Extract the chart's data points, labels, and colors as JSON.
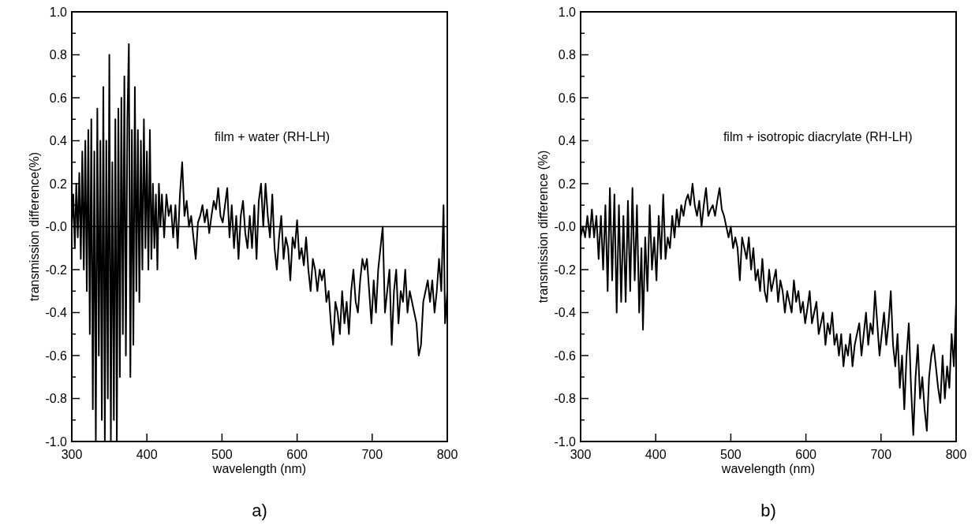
{
  "chart_data": [
    {
      "type": "line",
      "xlabel": "wavelength (nm)",
      "ylabel": "transmission difference(%)",
      "annotations": [
        "film + water (RH-LH)",
        "a)"
      ],
      "xlim": [
        300,
        800
      ],
      "xticks": [
        300,
        400,
        500,
        600,
        700,
        800
      ],
      "ylim": [
        -1,
        1
      ],
      "yticks": [
        {
          "value": -1,
          "label": "-1.0"
        },
        {
          "value": -0.9,
          "label": null
        },
        {
          "value": -0.8,
          "label": "-0.8"
        },
        {
          "value": -0.7,
          "label": null
        },
        {
          "value": -0.6,
          "label": "-0.6"
        },
        {
          "value": -0.5,
          "label": null
        },
        {
          "value": -0.4,
          "label": "-0.4"
        },
        {
          "value": -0.3,
          "label": null
        },
        {
          "value": -0.2,
          "label": "-0.2"
        },
        {
          "value": -0.1,
          "label": null
        },
        {
          "value": 0,
          "label": "-0.0"
        },
        {
          "value": 0.1,
          "label": null
        },
        {
          "value": 0.2,
          "label": "0.2"
        },
        {
          "value": 0.3,
          "label": null
        },
        {
          "value": 0.4,
          "label": "0.4"
        },
        {
          "value": 0.5,
          "label": null
        },
        {
          "value": 0.6,
          "label": "0.6"
        },
        {
          "value": 0.7,
          "label": null
        },
        {
          "value": 0.8,
          "label": "0.8"
        },
        {
          "value": 0.9,
          "label": null
        },
        {
          "value": 1.0,
          "label": "1.0"
        }
      ],
      "ref_lines": [
        {
          "axis": "y",
          "value": 0,
          "color": "#000000"
        }
      ],
      "grid": false,
      "marker": "none",
      "line_style": "solid",
      "series": [
        {
          "color": "#000000",
          "x": [
            300,
            302,
            304,
            306,
            308,
            310,
            312,
            314,
            316,
            318,
            320,
            322,
            324,
            326,
            328,
            330,
            332,
            334,
            336,
            338,
            340,
            342,
            344,
            346,
            348,
            350,
            352,
            354,
            356,
            358,
            360,
            362,
            364,
            366,
            368,
            370,
            372,
            374,
            376,
            378,
            380,
            382,
            384,
            386,
            388,
            390,
            392,
            394,
            396,
            398,
            400,
            402,
            404,
            406,
            408,
            410,
            412,
            414,
            416,
            418,
            420,
            423,
            426,
            429,
            432,
            435,
            438,
            441,
            444,
            447,
            450,
            453,
            456,
            459,
            462,
            465,
            468,
            471,
            474,
            477,
            480,
            483,
            486,
            489,
            492,
            495,
            498,
            501,
            504,
            507,
            510,
            513,
            516,
            519,
            522,
            525,
            528,
            531,
            534,
            537,
            540,
            543,
            546,
            549,
            552,
            555,
            558,
            561,
            564,
            567,
            570,
            573,
            576,
            579,
            582,
            585,
            588,
            591,
            594,
            597,
            600,
            603,
            606,
            609,
            612,
            615,
            618,
            621,
            624,
            627,
            630,
            633,
            636,
            639,
            642,
            645,
            648,
            651,
            654,
            657,
            660,
            663,
            666,
            669,
            672,
            675,
            678,
            681,
            684,
            687,
            690,
            693,
            696,
            699,
            702,
            705,
            708,
            711,
            714,
            717,
            720,
            723,
            726,
            729,
            732,
            735,
            738,
            741,
            744,
            747,
            750,
            753,
            756,
            759,
            762,
            765,
            768,
            771,
            774,
            777,
            780,
            783,
            786,
            789,
            792,
            795,
            797,
            800
          ],
          "values": [
            0.0,
            0.15,
            -0.1,
            0.2,
            -0.05,
            0.25,
            -0.15,
            0.35,
            -0.2,
            0.4,
            -0.3,
            0.45,
            -0.5,
            0.5,
            -0.85,
            0.35,
            -1.0,
            0.55,
            -0.6,
            0.4,
            -0.9,
            0.65,
            -1.0,
            0.4,
            -0.8,
            0.8,
            -1.0,
            0.3,
            -0.9,
            0.5,
            -1.0,
            0.55,
            -0.7,
            0.6,
            -0.5,
            0.7,
            -0.6,
            0.5,
            0.85,
            -0.7,
            0.45,
            -0.55,
            0.65,
            -0.3,
            0.45,
            -0.35,
            0.4,
            -0.2,
            0.5,
            -0.1,
            0.35,
            -0.2,
            0.45,
            -0.15,
            0.2,
            -0.1,
            0.15,
            -0.2,
            0.2,
            0.0,
            0.15,
            -0.05,
            0.15,
            0.05,
            0.1,
            -0.05,
            0.1,
            -0.1,
            0.15,
            0.3,
            0.05,
            0.12,
            0.0,
            0.05,
            -0.05,
            -0.15,
            0.02,
            0.05,
            0.1,
            0.02,
            0.08,
            -0.03,
            0.05,
            0.12,
            0.08,
            0.18,
            0.05,
            0.02,
            0.1,
            0.18,
            -0.05,
            0.1,
            -0.1,
            0.05,
            -0.15,
            0.05,
            0.12,
            -0.03,
            -0.1,
            0.05,
            -0.1,
            0.1,
            -0.15,
            0.12,
            0.2,
            0.0,
            0.2,
            0.05,
            -0.05,
            0.15,
            -0.1,
            -0.2,
            -0.05,
            0.05,
            -0.15,
            -0.05,
            -0.1,
            -0.25,
            -0.05,
            -0.1,
            0.03,
            -0.15,
            -0.1,
            -0.18,
            -0.05,
            -0.2,
            -0.3,
            -0.15,
            -0.2,
            -0.3,
            -0.2,
            -0.25,
            -0.2,
            -0.35,
            -0.3,
            -0.45,
            -0.55,
            -0.35,
            -0.4,
            -0.5,
            -0.3,
            -0.45,
            -0.35,
            -0.5,
            -0.3,
            -0.2,
            -0.35,
            -0.4,
            -0.25,
            -0.15,
            -0.2,
            -0.15,
            -0.3,
            -0.45,
            -0.25,
            -0.4,
            -0.2,
            -0.1,
            0.0,
            -0.4,
            -0.3,
            -0.2,
            -0.55,
            -0.3,
            -0.2,
            -0.45,
            -0.3,
            -0.35,
            -0.2,
            -0.4,
            -0.3,
            -0.35,
            -0.4,
            -0.45,
            -0.6,
            -0.55,
            -0.35,
            -0.3,
            -0.25,
            -0.35,
            -0.25,
            -0.4,
            -0.3,
            -0.15,
            -0.3,
            0.1,
            -0.45,
            -0.3
          ]
        }
      ]
    },
    {
      "type": "line",
      "xlabel": "wavelength (nm)",
      "ylabel": "transmission difference (%)",
      "annotations": [
        "film + isotropic diacrylate (RH-LH)",
        "b)"
      ],
      "xlim": [
        300,
        800
      ],
      "xticks": [
        300,
        400,
        500,
        600,
        700,
        800
      ],
      "ylim": [
        -1,
        1
      ],
      "yticks": [
        {
          "value": -1,
          "label": "-1.0"
        },
        {
          "value": -0.9,
          "label": null
        },
        {
          "value": -0.8,
          "label": "-0.8"
        },
        {
          "value": -0.7,
          "label": null
        },
        {
          "value": -0.6,
          "label": "-0.6"
        },
        {
          "value": -0.5,
          "label": null
        },
        {
          "value": -0.4,
          "label": "-0.4"
        },
        {
          "value": -0.3,
          "label": null
        },
        {
          "value": -0.2,
          "label": "-0.2"
        },
        {
          "value": -0.1,
          "label": null
        },
        {
          "value": 0,
          "label": "-0.0"
        },
        {
          "value": 0.1,
          "label": null
        },
        {
          "value": 0.2,
          "label": "0.2"
        },
        {
          "value": 0.3,
          "label": null
        },
        {
          "value": 0.4,
          "label": "0.4"
        },
        {
          "value": 0.5,
          "label": null
        },
        {
          "value": 0.6,
          "label": "0.6"
        },
        {
          "value": 0.7,
          "label": null
        },
        {
          "value": 0.8,
          "label": "0.8"
        },
        {
          "value": 0.9,
          "label": null
        },
        {
          "value": 1.0,
          "label": "1.0"
        }
      ],
      "ref_lines": [
        {
          "axis": "y",
          "value": 0,
          "color": "#000000"
        }
      ],
      "grid": false,
      "marker": "none",
      "line_style": "solid",
      "series": [
        {
          "color": "#000000",
          "x": [
            300,
            303,
            306,
            309,
            312,
            315,
            318,
            321,
            324,
            327,
            330,
            333,
            336,
            339,
            342,
            345,
            348,
            351,
            354,
            357,
            360,
            363,
            366,
            369,
            372,
            375,
            378,
            381,
            383,
            386,
            389,
            392,
            395,
            398,
            401,
            404,
            407,
            410,
            413,
            416,
            419,
            422,
            425,
            428,
            431,
            434,
            437,
            440,
            443,
            446,
            449,
            452,
            455,
            458,
            461,
            464,
            467,
            470,
            473,
            476,
            479,
            482,
            485,
            488,
            491,
            494,
            497,
            500,
            503,
            506,
            509,
            512,
            515,
            518,
            521,
            524,
            527,
            530,
            533,
            536,
            539,
            542,
            545,
            548,
            551,
            554,
            557,
            560,
            563,
            566,
            569,
            572,
            575,
            578,
            581,
            584,
            587,
            590,
            593,
            596,
            599,
            602,
            605,
            608,
            611,
            614,
            617,
            620,
            623,
            626,
            629,
            632,
            635,
            638,
            641,
            644,
            647,
            650,
            653,
            656,
            659,
            662,
            665,
            668,
            671,
            674,
            677,
            680,
            683,
            686,
            689,
            692,
            695,
            698,
            701,
            704,
            707,
            710,
            713,
            716,
            719,
            722,
            725,
            728,
            731,
            734,
            737,
            740,
            743,
            746,
            749,
            752,
            755,
            758,
            761,
            764,
            767,
            770,
            773,
            776,
            779,
            782,
            785,
            788,
            791,
            794,
            797,
            800
          ],
          "values": [
            -0.05,
            0.0,
            -0.05,
            0.05,
            -0.05,
            0.08,
            -0.05,
            0.05,
            -0.15,
            0.05,
            -0.2,
            0.1,
            -0.3,
            0.18,
            -0.25,
            0.15,
            -0.4,
            0.1,
            -0.35,
            0.05,
            -0.35,
            0.12,
            -0.3,
            0.18,
            -0.25,
            0.1,
            -0.4,
            -0.1,
            -0.48,
            -0.05,
            -0.3,
            0.1,
            -0.2,
            -0.05,
            -0.25,
            0.05,
            -0.15,
            0.15,
            -0.15,
            -0.05,
            -0.1,
            0.05,
            -0.05,
            0.08,
            0.0,
            0.1,
            0.05,
            0.12,
            0.15,
            0.1,
            0.2,
            0.1,
            0.05,
            0.12,
            0.0,
            0.1,
            0.18,
            0.05,
            0.08,
            0.1,
            0.05,
            0.12,
            0.18,
            0.08,
            0.05,
            0.0,
            -0.05,
            0.0,
            -0.1,
            -0.05,
            -0.1,
            -0.25,
            -0.05,
            -0.1,
            -0.15,
            -0.05,
            -0.2,
            -0.1,
            -0.25,
            -0.2,
            -0.3,
            -0.15,
            -0.3,
            -0.35,
            -0.2,
            -0.3,
            -0.25,
            -0.2,
            -0.35,
            -0.25,
            -0.3,
            -0.4,
            -0.3,
            -0.35,
            -0.4,
            -0.25,
            -0.35,
            -0.3,
            -0.4,
            -0.35,
            -0.45,
            -0.38,
            -0.3,
            -0.45,
            -0.4,
            -0.35,
            -0.5,
            -0.45,
            -0.4,
            -0.55,
            -0.45,
            -0.5,
            -0.4,
            -0.55,
            -0.5,
            -0.6,
            -0.5,
            -0.65,
            -0.55,
            -0.6,
            -0.5,
            -0.65,
            -0.55,
            -0.5,
            -0.45,
            -0.6,
            -0.5,
            -0.4,
            -0.55,
            -0.45,
            -0.5,
            -0.3,
            -0.45,
            -0.6,
            -0.5,
            -0.4,
            -0.55,
            -0.45,
            -0.3,
            -0.55,
            -0.65,
            -0.5,
            -0.75,
            -0.6,
            -0.85,
            -0.6,
            -0.45,
            -0.75,
            -0.97,
            -0.7,
            -0.55,
            -0.8,
            -0.7,
            -0.85,
            -0.95,
            -0.7,
            -0.6,
            -0.55,
            -0.65,
            -0.75,
            -0.82,
            -0.6,
            -0.8,
            -0.65,
            -0.75,
            -0.5,
            -0.65,
            -0.35
          ]
        }
      ]
    }
  ]
}
